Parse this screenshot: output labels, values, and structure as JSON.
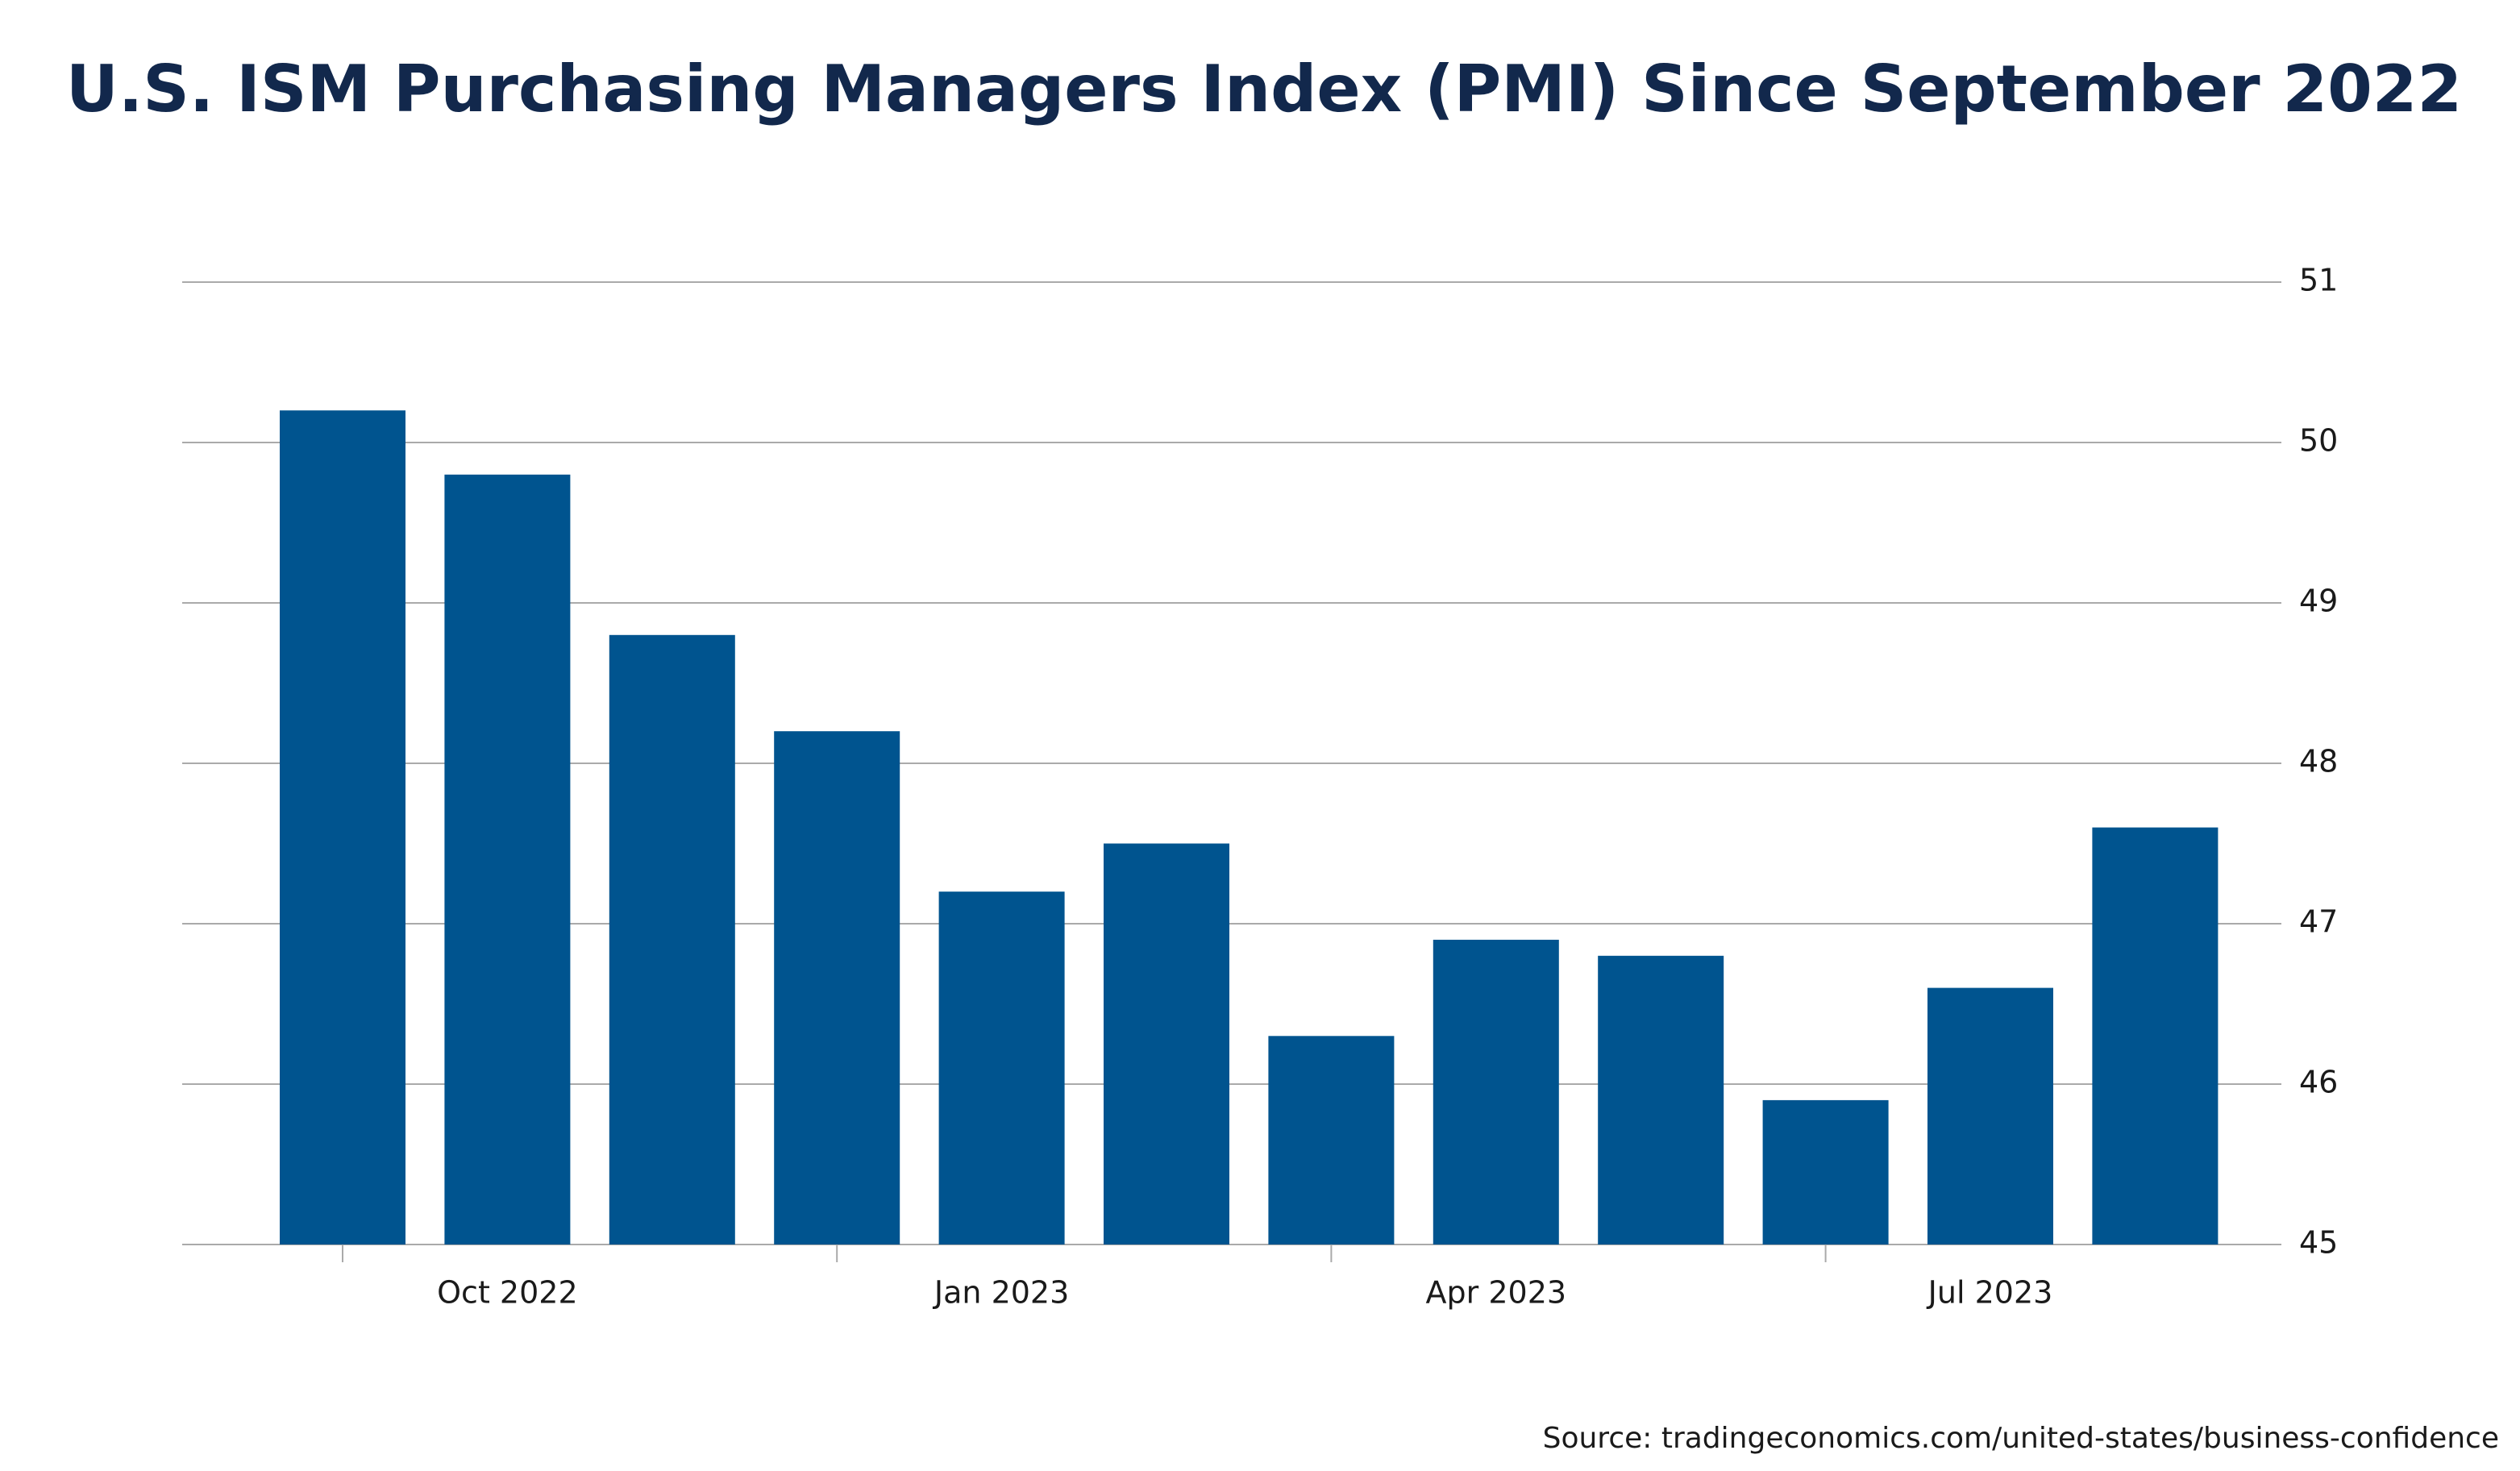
{
  "chart_data": {
    "type": "bar",
    "title": "U.S. ISM Purchasing Managers Index (PMI) Since September 2022",
    "source": "Source: tradingeconomics.com/united-states/business-confidence",
    "categories": [
      null,
      "Oct 2022",
      null,
      null,
      "Jan 2023",
      null,
      null,
      "Apr 2023",
      null,
      null,
      "Jul 2023",
      null
    ],
    "values": [
      50.2,
      49.8,
      48.8,
      48.2,
      47.2,
      47.5,
      46.3,
      46.9,
      46.8,
      45.9,
      46.6,
      47.6
    ],
    "color": "#00548f",
    "ylim": [
      45,
      51
    ],
    "yticks": [
      45,
      46,
      47,
      48,
      49,
      50,
      51
    ],
    "grid": true
  }
}
